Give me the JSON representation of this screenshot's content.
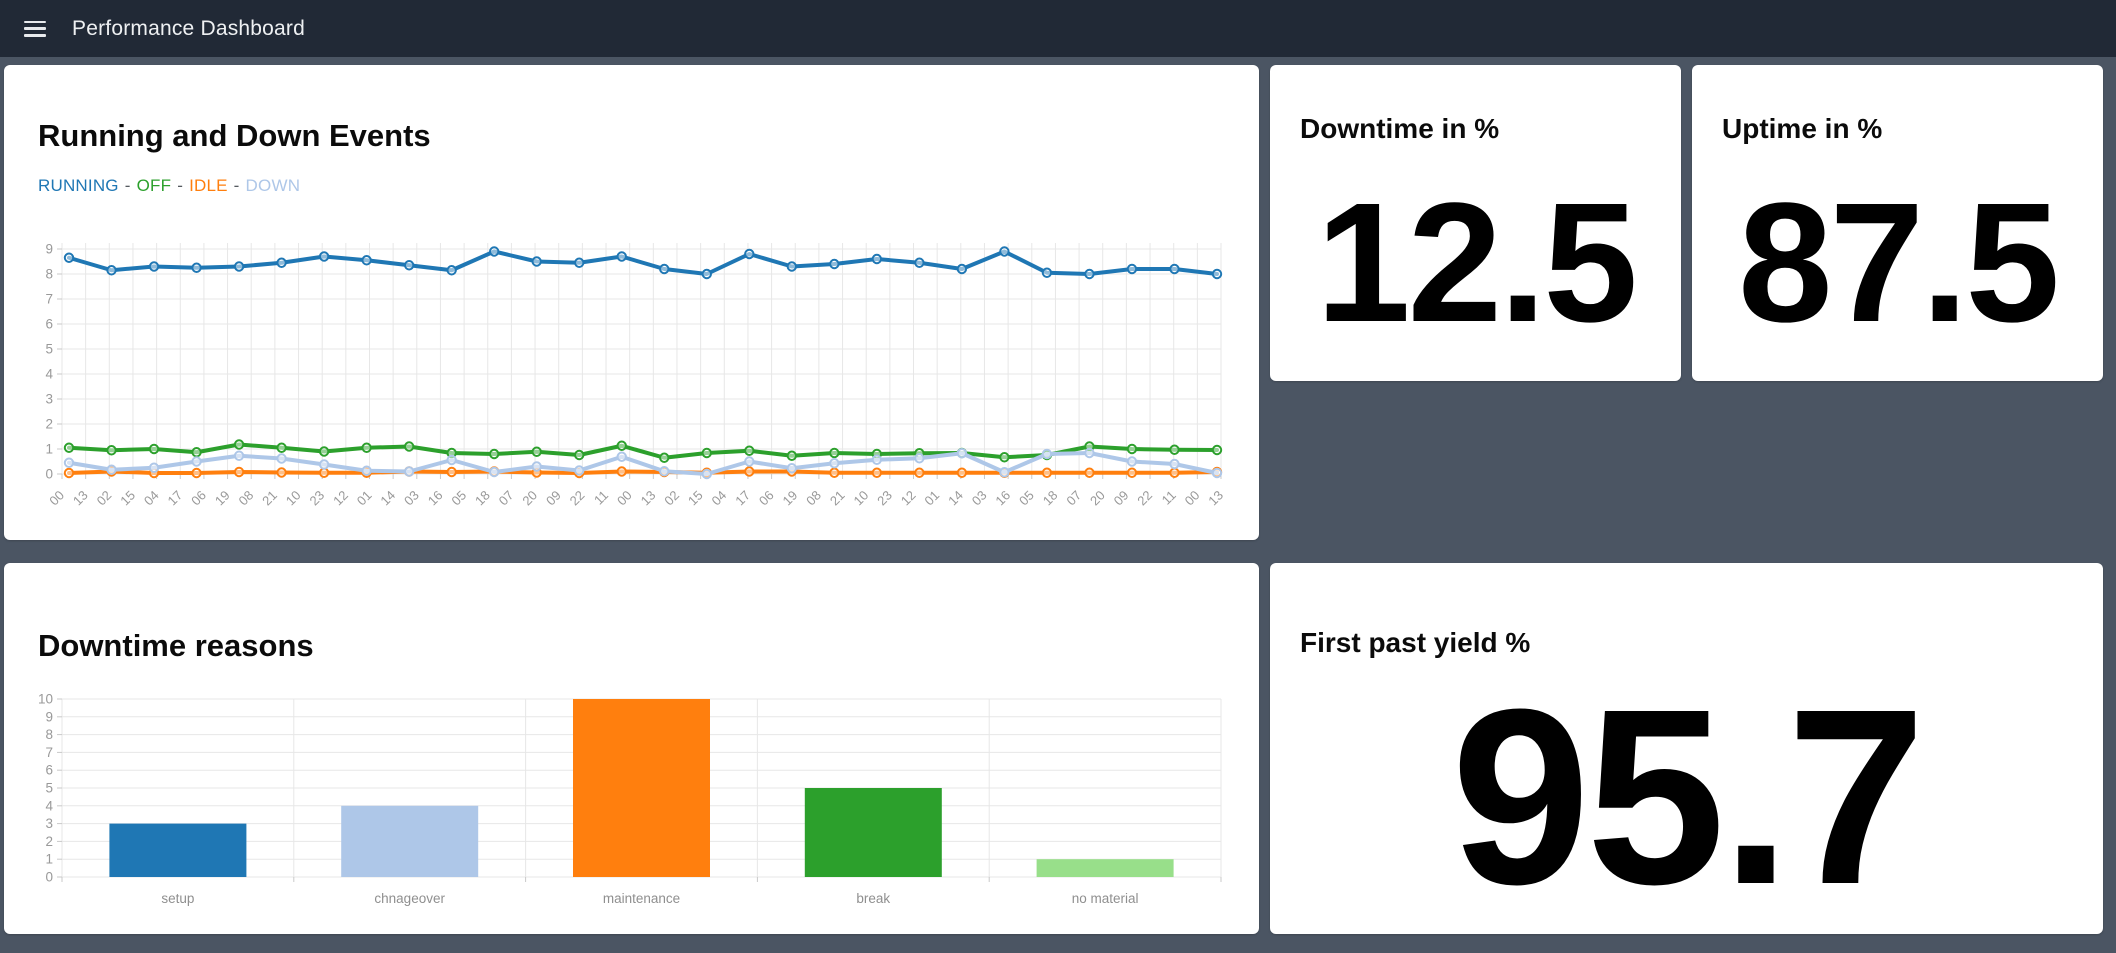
{
  "navbar": {
    "title": "Performance Dashboard"
  },
  "theme": {
    "background": "#4b5563",
    "navbar_bg": "#212936",
    "card_bg": "#ffffff",
    "grid_color": "#e7e7e7",
    "tick_color": "#c9c9c9",
    "axis_label_color": "#999999",
    "legend_separator_color": "#555a5f"
  },
  "cards": {
    "running_events": {
      "title": "Running and Down Events"
    },
    "downtime": {
      "title": "Downtime in %",
      "value": "12.5"
    },
    "uptime": {
      "title": "Uptime in %",
      "value": "87.5"
    },
    "downtime_reasons": {
      "title": "Downtime reasons"
    },
    "first_pass_yield": {
      "title": "First past yield %",
      "value": "95.7"
    }
  },
  "chart_data": [
    {
      "id": "running_events",
      "type": "line",
      "title": "Running and Down Events",
      "legend_position": "top-left",
      "legend_separator": "-",
      "grid": true,
      "ylim": [
        0,
        9
      ],
      "y_ticks": [
        0,
        1,
        2,
        3,
        4,
        5,
        6,
        7,
        8,
        9
      ],
      "x_labels": [
        "00",
        "13",
        "02",
        "15",
        "04",
        "17",
        "06",
        "19",
        "08",
        "21",
        "10",
        "23",
        "12",
        "01",
        "14",
        "03",
        "16",
        "05",
        "18",
        "07",
        "20",
        "09",
        "22",
        "11",
        "00",
        "13",
        "02",
        "15",
        "04",
        "17",
        "06",
        "19",
        "08",
        "21",
        "10",
        "23",
        "12",
        "01",
        "14",
        "03",
        "16",
        "05",
        "18",
        "07",
        "20",
        "09",
        "22",
        "11",
        "00",
        "13"
      ],
      "series": [
        {
          "name": "RUNNING",
          "color": "#1f77b4",
          "values": [
            8.65,
            8.15,
            8.3,
            8.25,
            8.3,
            8.45,
            8.7,
            8.55,
            8.35,
            8.15,
            8.9,
            8.5,
            8.45,
            8.7,
            8.2,
            8.0,
            8.8,
            8.3,
            8.4,
            8.6,
            8.45,
            8.2,
            8.9,
            8.05,
            8.0,
            8.2,
            8.2,
            8.0
          ]
        },
        {
          "name": "OFF",
          "color": "#2ca02c",
          "values": [
            1.05,
            0.95,
            1.0,
            0.87,
            1.18,
            1.05,
            0.9,
            1.05,
            1.1,
            0.84,
            0.8,
            0.89,
            0.76,
            1.13,
            0.65,
            0.84,
            0.93,
            0.73,
            0.84,
            0.8,
            0.83,
            0.84,
            0.67,
            0.76,
            1.1,
            1.0,
            0.97,
            0.96
          ]
        },
        {
          "name": "IDLE",
          "color": "#ff7f0e",
          "values": [
            0.04,
            0.1,
            0.04,
            0.04,
            0.08,
            0.06,
            0.05,
            0.05,
            0.1,
            0.08,
            0.1,
            0.06,
            0.04,
            0.1,
            0.08,
            0.05,
            0.1,
            0.1,
            0.05,
            0.05,
            0.05,
            0.05,
            0.05,
            0.05,
            0.05,
            0.05,
            0.05,
            0.08
          ]
        },
        {
          "name": "DOWN",
          "color": "#aec7e8",
          "values": [
            0.45,
            0.17,
            0.25,
            0.5,
            0.73,
            0.62,
            0.38,
            0.13,
            0.1,
            0.56,
            0.08,
            0.3,
            0.14,
            0.69,
            0.11,
            0.0,
            0.5,
            0.23,
            0.43,
            0.57,
            0.63,
            0.83,
            0.07,
            0.8,
            0.84,
            0.5,
            0.4,
            0.04
          ]
        }
      ]
    },
    {
      "id": "downtime_reasons",
      "type": "bar",
      "title": "Downtime reasons",
      "grid": true,
      "ylim": [
        0,
        10
      ],
      "y_ticks": [
        0,
        1,
        2,
        3,
        4,
        5,
        6,
        7,
        8,
        9,
        10
      ],
      "categories": [
        "setup",
        "chnageover",
        "maintenance",
        "break",
        "no material"
      ],
      "values": [
        3,
        4,
        10,
        5,
        1
      ],
      "bar_colors": [
        "#1f77b4",
        "#aec7e8",
        "#ff7f0e",
        "#2ca02c",
        "#98df8a"
      ]
    }
  ]
}
